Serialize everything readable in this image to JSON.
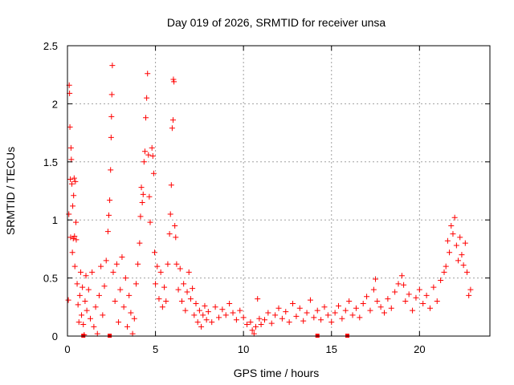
{
  "chart_data": {
    "type": "scatter",
    "title": "Day 019 of 2026, SRMTID for receiver unsa",
    "xlabel": "GPS time / hours",
    "ylabel": "SRMTID / TECUs",
    "xlim": [
      0,
      24
    ],
    "ylim": [
      0,
      2.5
    ],
    "xticks": [
      0,
      5,
      10,
      15,
      20
    ],
    "xtick_labels": [
      "0",
      "5",
      "10",
      "15",
      "20"
    ],
    "yticks": [
      0,
      0.5,
      1,
      1.5,
      2,
      2.5
    ],
    "ytick_labels": [
      "0",
      "0.5",
      "1",
      "1.5",
      "2",
      "2.5"
    ],
    "grid": true,
    "marker": "plus",
    "series": [
      {
        "name": "SRMTID",
        "color": "#ff0000",
        "points": [
          [
            0.05,
            0.31
          ],
          [
            0.08,
            1.05
          ],
          [
            0.1,
            2.16
          ],
          [
            0.12,
            2.09
          ],
          [
            0.14,
            1.8
          ],
          [
            0.16,
            1.35
          ],
          [
            0.18,
            0.85
          ],
          [
            0.2,
            1.62
          ],
          [
            0.22,
            1.52
          ],
          [
            0.25,
            1.31
          ],
          [
            0.28,
            0.72
          ],
          [
            0.3,
            1.12
          ],
          [
            0.33,
            0.84
          ],
          [
            0.35,
            1.21
          ],
          [
            0.38,
            1.36
          ],
          [
            0.4,
            0.86
          ],
          [
            0.42,
            0.6
          ],
          [
            0.45,
            1.33
          ],
          [
            0.48,
            0.98
          ],
          [
            0.5,
            0.83
          ],
          [
            0.55,
            0.45
          ],
          [
            0.6,
            0.27
          ],
          [
            0.65,
            0.12
          ],
          [
            0.7,
            0.35
          ],
          [
            0.75,
            0.55
          ],
          [
            0.8,
            0.18
          ],
          [
            0.85,
            0.42
          ],
          [
            0.9,
            0.1
          ],
          [
            0.95,
            0.01
          ],
          [
            1.0,
            0.3
          ],
          [
            1.05,
            0.52
          ],
          [
            1.1,
            0.22
          ],
          [
            1.2,
            0.4
          ],
          [
            1.3,
            0.15
          ],
          [
            1.4,
            0.55
          ],
          [
            1.5,
            0.08
          ],
          [
            1.6,
            0.25
          ],
          [
            1.7,
            0.02
          ],
          [
            1.8,
            0.35
          ],
          [
            1.9,
            0.6
          ],
          [
            2.0,
            0.18
          ],
          [
            2.1,
            0.43
          ],
          [
            2.2,
            0.65
          ],
          [
            2.3,
            0.9
          ],
          [
            2.35,
            1.04
          ],
          [
            2.4,
            1.17
          ],
          [
            2.45,
            1.43
          ],
          [
            2.48,
            1.71
          ],
          [
            2.5,
            1.89
          ],
          [
            2.52,
            2.08
          ],
          [
            2.55,
            2.33
          ],
          [
            2.6,
            0.55
          ],
          [
            2.7,
            0.3
          ],
          [
            2.8,
            0.62
          ],
          [
            2.9,
            0.12
          ],
          [
            3.0,
            0.4
          ],
          [
            3.1,
            0.68
          ],
          [
            3.2,
            0.25
          ],
          [
            3.3,
            0.5
          ],
          [
            3.4,
            0.08
          ],
          [
            3.5,
            0.35
          ],
          [
            3.6,
            0.2
          ],
          [
            3.7,
            0.02
          ],
          [
            3.8,
            0.15
          ],
          [
            3.9,
            0.45
          ],
          [
            4.0,
            0.62
          ],
          [
            4.1,
            0.8
          ],
          [
            4.15,
            1.03
          ],
          [
            4.2,
            1.28
          ],
          [
            4.25,
            1.15
          ],
          [
            4.3,
            1.22
          ],
          [
            4.35,
            1.5
          ],
          [
            4.4,
            1.59
          ],
          [
            4.45,
            1.88
          ],
          [
            4.5,
            2.05
          ],
          [
            4.55,
            2.26
          ],
          [
            4.6,
            1.56
          ],
          [
            4.65,
            1.2
          ],
          [
            4.7,
            0.98
          ],
          [
            4.8,
            1.62
          ],
          [
            4.85,
            1.55
          ],
          [
            4.9,
            1.4
          ],
          [
            4.95,
            0.72
          ],
          [
            5.0,
            0.45
          ],
          [
            5.1,
            0.6
          ],
          [
            5.2,
            0.32
          ],
          [
            5.3,
            0.55
          ],
          [
            5.4,
            0.25
          ],
          [
            5.5,
            0.42
          ],
          [
            5.6,
            0.3
          ],
          [
            5.7,
            0.62
          ],
          [
            5.8,
            0.88
          ],
          [
            5.85,
            1.05
          ],
          [
            5.9,
            1.3
          ],
          [
            5.95,
            1.79
          ],
          [
            6.0,
            1.86
          ],
          [
            6.02,
            2.21
          ],
          [
            6.05,
            2.19
          ],
          [
            6.1,
            0.95
          ],
          [
            6.15,
            0.85
          ],
          [
            6.2,
            0.62
          ],
          [
            6.3,
            0.4
          ],
          [
            6.4,
            0.58
          ],
          [
            6.5,
            0.3
          ],
          [
            6.6,
            0.45
          ],
          [
            6.7,
            0.22
          ],
          [
            6.8,
            0.38
          ],
          [
            6.9,
            0.55
          ],
          [
            7.0,
            0.32
          ],
          [
            7.1,
            0.41
          ],
          [
            7.2,
            0.18
          ],
          [
            7.3,
            0.28
          ],
          [
            7.4,
            0.12
          ],
          [
            7.5,
            0.22
          ],
          [
            7.6,
            0.08
          ],
          [
            7.7,
            0.18
          ],
          [
            7.8,
            0.26
          ],
          [
            7.9,
            0.14
          ],
          [
            8.0,
            0.21
          ],
          [
            8.2,
            0.12
          ],
          [
            8.4,
            0.25
          ],
          [
            8.6,
            0.16
          ],
          [
            8.8,
            0.23
          ],
          [
            9.0,
            0.18
          ],
          [
            9.2,
            0.28
          ],
          [
            9.4,
            0.2
          ],
          [
            9.6,
            0.14
          ],
          [
            9.8,
            0.22
          ],
          [
            10.0,
            0.16
          ],
          [
            10.2,
            0.1
          ],
          [
            10.4,
            0.12
          ],
          [
            10.5,
            0.05
          ],
          [
            10.6,
            0.02
          ],
          [
            10.7,
            0.08
          ],
          [
            10.8,
            0.32
          ],
          [
            10.9,
            0.15
          ],
          [
            11.0,
            0.1
          ],
          [
            11.2,
            0.14
          ],
          [
            11.4,
            0.2
          ],
          [
            11.6,
            0.11
          ],
          [
            11.8,
            0.18
          ],
          [
            12.0,
            0.24
          ],
          [
            12.2,
            0.15
          ],
          [
            12.4,
            0.21
          ],
          [
            12.6,
            0.12
          ],
          [
            12.8,
            0.28
          ],
          [
            13.0,
            0.17
          ],
          [
            13.2,
            0.24
          ],
          [
            13.4,
            0.13
          ],
          [
            13.6,
            0.2
          ],
          [
            13.8,
            0.31
          ],
          [
            14.0,
            0.16
          ],
          [
            14.2,
            0.22
          ],
          [
            14.4,
            0.14
          ],
          [
            14.6,
            0.25
          ],
          [
            14.8,
            0.18
          ],
          [
            15.0,
            0.12
          ],
          [
            15.2,
            0.2
          ],
          [
            15.4,
            0.26
          ],
          [
            15.6,
            0.15
          ],
          [
            15.8,
            0.22
          ],
          [
            16.0,
            0.3
          ],
          [
            16.2,
            0.18
          ],
          [
            16.4,
            0.24
          ],
          [
            16.6,
            0.16
          ],
          [
            16.8,
            0.28
          ],
          [
            17.0,
            0.34
          ],
          [
            17.2,
            0.22
          ],
          [
            17.4,
            0.4
          ],
          [
            17.5,
            0.49
          ],
          [
            17.6,
            0.3
          ],
          [
            17.8,
            0.25
          ],
          [
            18.0,
            0.2
          ],
          [
            18.2,
            0.32
          ],
          [
            18.4,
            0.24
          ],
          [
            18.6,
            0.38
          ],
          [
            18.8,
            0.45
          ],
          [
            19.0,
            0.52
          ],
          [
            19.1,
            0.44
          ],
          [
            19.2,
            0.3
          ],
          [
            19.4,
            0.36
          ],
          [
            19.6,
            0.22
          ],
          [
            19.8,
            0.33
          ],
          [
            20.0,
            0.4
          ],
          [
            20.2,
            0.28
          ],
          [
            20.4,
            0.35
          ],
          [
            20.6,
            0.24
          ],
          [
            20.8,
            0.42
          ],
          [
            21.0,
            0.3
          ],
          [
            21.2,
            0.48
          ],
          [
            21.4,
            0.55
          ],
          [
            21.5,
            0.6
          ],
          [
            21.6,
            0.82
          ],
          [
            21.7,
            0.72
          ],
          [
            21.8,
            0.95
          ],
          [
            21.9,
            0.88
          ],
          [
            22.0,
            1.02
          ],
          [
            22.1,
            0.78
          ],
          [
            22.2,
            0.65
          ],
          [
            22.3,
            0.85
          ],
          [
            22.4,
            0.7
          ],
          [
            22.5,
            0.61
          ],
          [
            22.6,
            0.8
          ],
          [
            22.7,
            0.55
          ],
          [
            22.8,
            0.35
          ],
          [
            22.9,
            0.4
          ]
        ]
      }
    ],
    "baseline_markers": [
      0.9,
      2.4,
      14.2,
      15.9
    ]
  }
}
